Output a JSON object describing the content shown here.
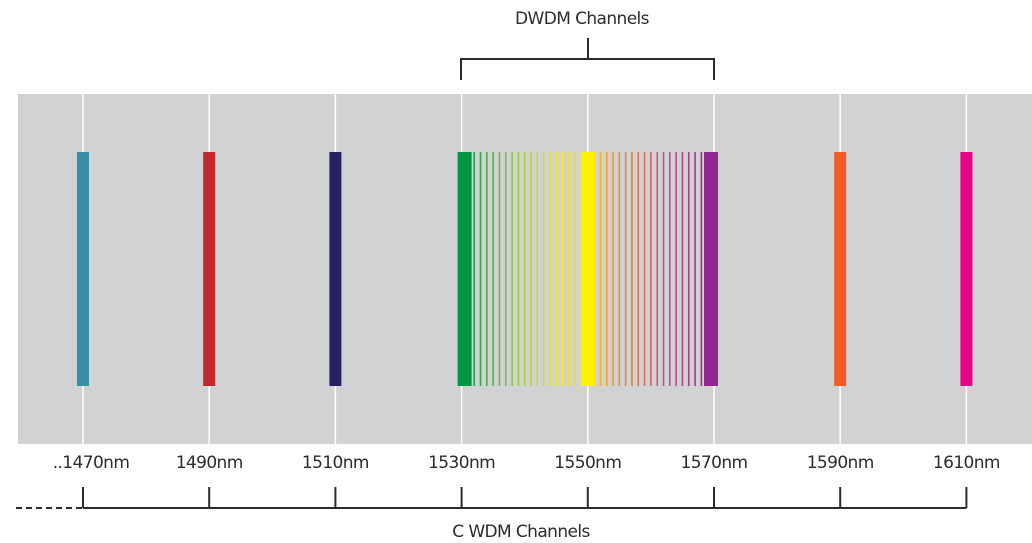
{
  "dwdm_label": "DWDM Channels",
  "cwdm_label": "C WDM Channels",
  "wavelength_labels": [
    "..1470nm",
    "1490nm",
    "1510nm",
    "1530nm",
    "1550nm",
    "1570nm",
    "1590nm",
    "1610nm"
  ],
  "colors": {
    "background_band": "#d1d2d4",
    "gridline": "#ffffff",
    "bracket": "#2b2b2b"
  },
  "cwdm_channels": [
    {
      "wavelength_nm": 1470,
      "color": "#3b8fa5"
    },
    {
      "wavelength_nm": 1490,
      "color": "#c1272d"
    },
    {
      "wavelength_nm": 1510,
      "color": "#262262"
    },
    {
      "wavelength_nm": 1530,
      "color": "#009444"
    },
    {
      "wavelength_nm": 1550,
      "color": "#fff200"
    },
    {
      "wavelength_nm": 1570,
      "color": "#92278f"
    },
    {
      "wavelength_nm": 1590,
      "color": "#f15a29"
    },
    {
      "wavelength_nm": 1610,
      "color": "#ec008c"
    }
  ],
  "dwdm_channels": {
    "range_nm": [
      1530,
      1570
    ],
    "gradient_stops": [
      "#009444",
      "#8dc63f",
      "#fff200",
      "#f7941d",
      "#c2578a",
      "#92278f"
    ]
  }
}
